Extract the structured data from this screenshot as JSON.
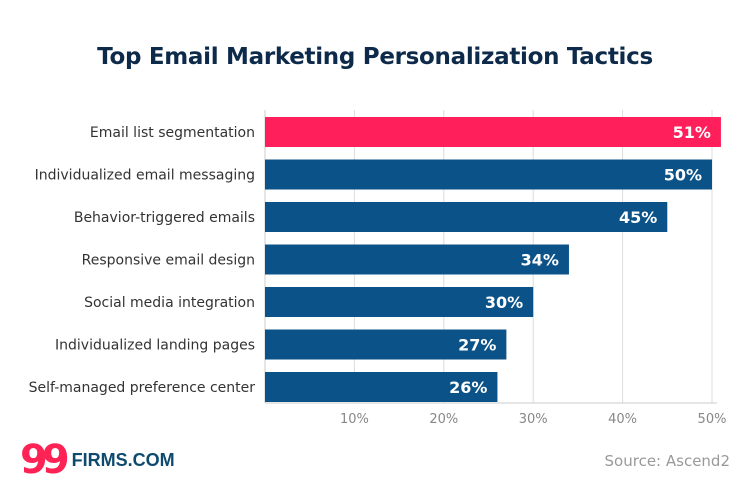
{
  "chart_data": {
    "type": "bar",
    "orientation": "horizontal",
    "title": "Top Email Marketing Personalization Tactics",
    "categories": [
      "Email list segmentation",
      "Individualized email messaging",
      "Behavior-triggered emails",
      "Responsive email design",
      "Social media integration",
      "Individualized landing pages",
      "Self-managed preference center"
    ],
    "values": [
      51,
      50,
      45,
      34,
      30,
      27,
      26
    ],
    "value_labels": [
      "51%",
      "50%",
      "45%",
      "34%",
      "30%",
      "27%",
      "26%"
    ],
    "xlim": [
      0,
      50
    ],
    "xticks": [
      10,
      20,
      30,
      40,
      50
    ],
    "xtick_labels": [
      "10%",
      "20%",
      "30%",
      "40%",
      "50%"
    ],
    "grid": "vertical",
    "colors": {
      "highlight": "#ff1f5a",
      "default": "#0b5289"
    }
  },
  "footer": {
    "logo_number": "99",
    "logo_text": "FIRMS.COM",
    "source": "Source: Ascend2"
  }
}
